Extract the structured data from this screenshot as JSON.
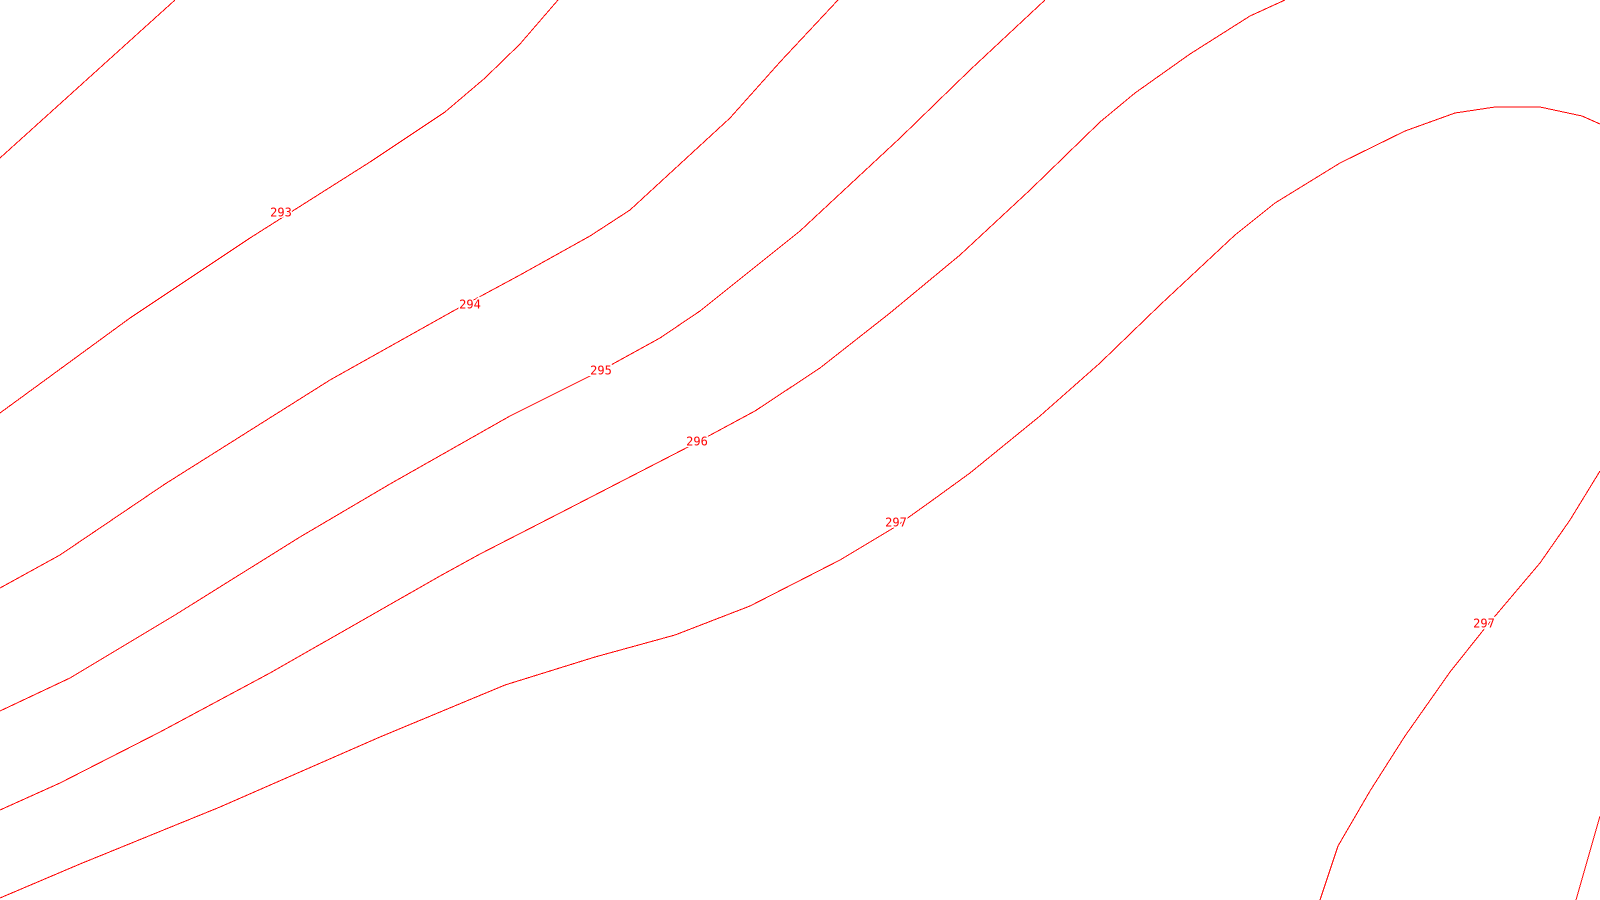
{
  "map": {
    "line_color": "#ff0000",
    "background_color": "#ffffff",
    "contours": [
      {
        "id": "c293",
        "label": "293"
      },
      {
        "id": "c294",
        "label": "294"
      },
      {
        "id": "c295",
        "label": "295"
      },
      {
        "id": "c296",
        "label": "296"
      },
      {
        "id": "c297a",
        "label": "297"
      },
      {
        "id": "c297b",
        "label": "297"
      }
    ]
  }
}
